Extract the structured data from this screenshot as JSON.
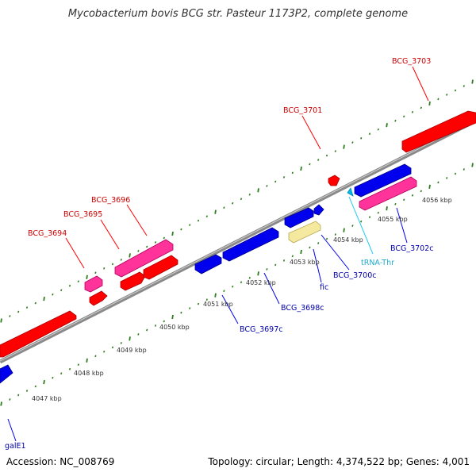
{
  "title": "Mycobacterium bovis BCG str. Pasteur 1173P2, complete genome",
  "footer": {
    "accession": "Accession: NC_008769",
    "summary": "Topology: circular; Length: 4,374,522 bp; Genes: 4,001"
  },
  "colors": {
    "backbone": "#808080",
    "tick": "#2e7d1e",
    "forward_gene": "#ff0000",
    "forward_gene_dark": "#aa0000",
    "pink_gene": "#ff3399",
    "reverse_gene": "#0000ee",
    "rna_gene": "#00bbee",
    "pseudo_gene": "#f5e9a0",
    "forward_label": "#cc0000",
    "reverse_label": "#0000aa",
    "rna_label": "#22aacc",
    "kbp_label": "#333333"
  },
  "kbp_labels": [
    "4047 kbp",
    "4048 kbp",
    "4049 kbp",
    "4050 kbp",
    "4051 kbp",
    "4052 kbp",
    "4053 kbp",
    "4054 kbp",
    "4055 kbp",
    "4056 kbp"
  ],
  "forward_labels": [
    "BCG_3694",
    "BCG_3695",
    "BCG_3696",
    "BCG_3701",
    "BCG_3703"
  ],
  "reverse_labels": [
    "galE1",
    "BCG_3697c",
    "BCG_3698c",
    "fic",
    "BCG_3700c",
    "BCG_3702c"
  ],
  "rna_labels": [
    "tRNA-Thr"
  ]
}
